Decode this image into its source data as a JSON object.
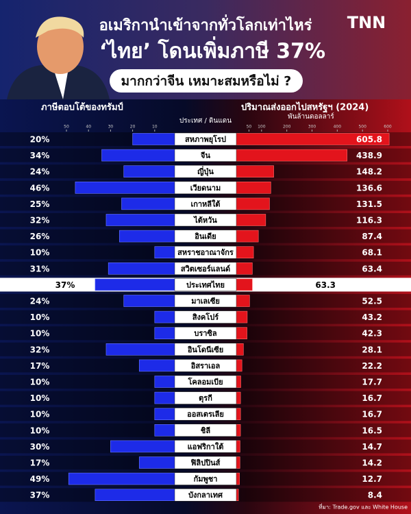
{
  "chart_data": {
    "type": "butterfly",
    "title": "อเมริกานำเข้าจากทั่วโลกเท่าไหร่",
    "subtitle": "‘ไทย’ โดนเพิ่มภาษี 37%",
    "question": "มากกว่าจีน เหมาะสมหรือไม่ ?",
    "logo": "TNN",
    "category_label": "ประเทศ / ดินแดน",
    "categories": [
      "สหภาพยุโรป",
      "จีน",
      "ญี่ปุ่น",
      "เวียดนาม",
      "เกาหลีใต้",
      "ไต้หวัน",
      "อินเดีย",
      "สหราชอาณาจักร",
      "สวิตเซอร์แลนด์",
      "ประเทศไทย",
      "มาเลเซีย",
      "สิงคโปร์",
      "บราซิล",
      "อินโดนีเซีย",
      "อิสราเอล",
      "โคลอมเบีย",
      "ตุรกี",
      "ออสเตรเลีย",
      "ชิลี",
      "แอฟริกาใต้",
      "ฟิลิปปินส์",
      "กัมพูชา",
      "บังกลาเทศ"
    ],
    "highlight": 9,
    "series": [
      {
        "name": "ภาษีตอบโต้ของทรัมป์",
        "color": "#1d2be8",
        "side": "left",
        "values": [
          20,
          34,
          24,
          46,
          25,
          32,
          26,
          10,
          31,
          37,
          24,
          10,
          10,
          32,
          17,
          10,
          10,
          10,
          10,
          30,
          17,
          49,
          37
        ],
        "value_labels": [
          "20%",
          "34%",
          "24%",
          "46%",
          "25%",
          "32%",
          "26%",
          "10%",
          "31%",
          "37%",
          "24%",
          "10%",
          "10%",
          "32%",
          "17%",
          "10%",
          "10%",
          "10%",
          "10%",
          "30%",
          "17%",
          "49%",
          "37%"
        ],
        "xlim": [
          0,
          50
        ],
        "xticks": [
          50,
          40,
          30,
          20,
          10
        ]
      },
      {
        "name": "ปริมาณส่งออกไปสหรัฐฯ (2024)",
        "color": "#e3141c",
        "side": "right",
        "unit_label": "พันล้านดอลลาร์",
        "values": [
          605.8,
          438.9,
          148.2,
          136.6,
          131.5,
          116.3,
          87.4,
          68.1,
          63.4,
          63.3,
          52.5,
          43.2,
          42.3,
          28.1,
          22.2,
          17.7,
          16.7,
          16.7,
          16.5,
          14.7,
          14.2,
          12.7,
          8.4
        ],
        "xlim": [
          0,
          600
        ],
        "xticks": [
          50,
          100,
          200,
          300,
          400,
          500,
          600
        ]
      }
    ],
    "source": "ที่มา: Trade.gov และ White House"
  }
}
